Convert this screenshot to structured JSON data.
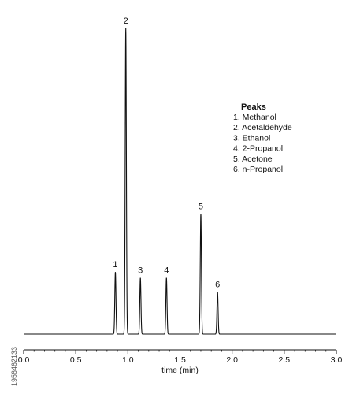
{
  "chart_data": {
    "type": "line",
    "xlabel": "time (min)",
    "xlim": [
      0.0,
      3.0
    ],
    "xticks": [
      "0.0",
      "0.5",
      "1.0",
      "1.5",
      "2.0",
      "2.5",
      "3.0"
    ],
    "baseline": 0,
    "ylim": [
      0,
      100
    ],
    "grid": false,
    "peaks": [
      {
        "label": "1",
        "rt": 0.88,
        "height": 20.3
      },
      {
        "label": "2",
        "rt": 0.98,
        "height": 100
      },
      {
        "label": "3",
        "rt": 1.12,
        "height": 18.4
      },
      {
        "label": "4",
        "rt": 1.37,
        "height": 18.4
      },
      {
        "label": "5",
        "rt": 1.7,
        "height": 39.3
      },
      {
        "label": "6",
        "rt": 1.86,
        "height": 13.8
      }
    ],
    "legend": {
      "title": "Peaks",
      "position": "top-right",
      "items": [
        "1. Methanol",
        "2. Acetaldehyde",
        "3. Ethanol",
        "4. 2-Propanol",
        "5. Acetone",
        "6. n-Propanol"
      ]
    }
  },
  "watermark_id": "1956462133",
  "colors": {
    "line": "#111111",
    "axis": "#111111"
  }
}
